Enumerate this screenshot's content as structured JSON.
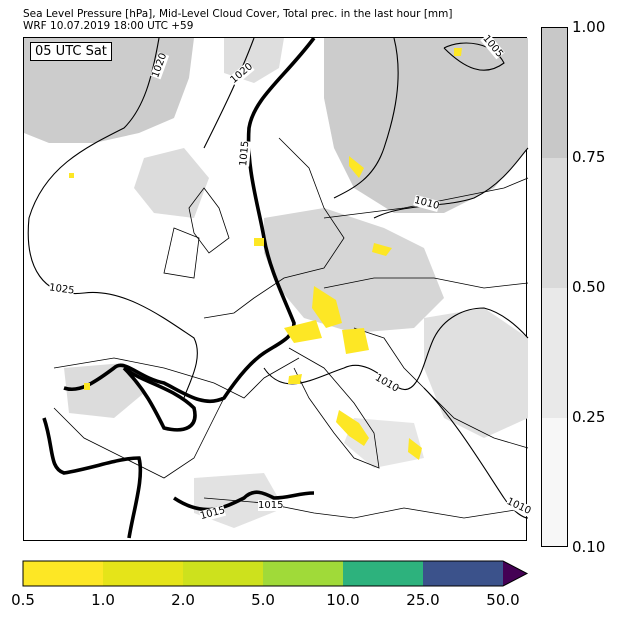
{
  "header": {
    "title": "Sea Level Pressure [hPa], Mid-Level Cloud Cover, Total prec. in the last hour [mm]",
    "subtitle": "WRF 10.07.2019 18:00 UTC +59"
  },
  "time_label": "05 UTC Sat",
  "isobar_labels": [
    "1020",
    "1020",
    "1015",
    "1025",
    "1010",
    "1010",
    "1015",
    "1015",
    "1010",
    "1005"
  ],
  "cloud_colorbar": {
    "ticks": [
      "1.00",
      "0.75",
      "0.50",
      "0.25",
      "0.10"
    ],
    "fills": [
      "#c8c8c8",
      "#dadada",
      "#e9e9e9",
      "#f7f7f7"
    ]
  },
  "precip_colorbar": {
    "ticks": [
      "0.5",
      "1.0",
      "2.0",
      "5.0",
      "10.0",
      "25.0",
      "50.0"
    ],
    "colors": [
      "#fde725",
      "#e5e419",
      "#cde11d",
      "#a0da39",
      "#2db27d",
      "#3b528b",
      "#440154"
    ]
  },
  "chart_data": {
    "type": "map",
    "isobars_hPa": [
      1005,
      1010,
      1015,
      1020,
      1025
    ],
    "cloud_cover_levels": [
      0.1,
      0.25,
      0.5,
      0.75,
      1.0
    ],
    "precip_levels_mm": [
      0.5,
      1.0,
      2.0,
      5.0,
      10.0,
      25.0,
      50.0
    ]
  }
}
